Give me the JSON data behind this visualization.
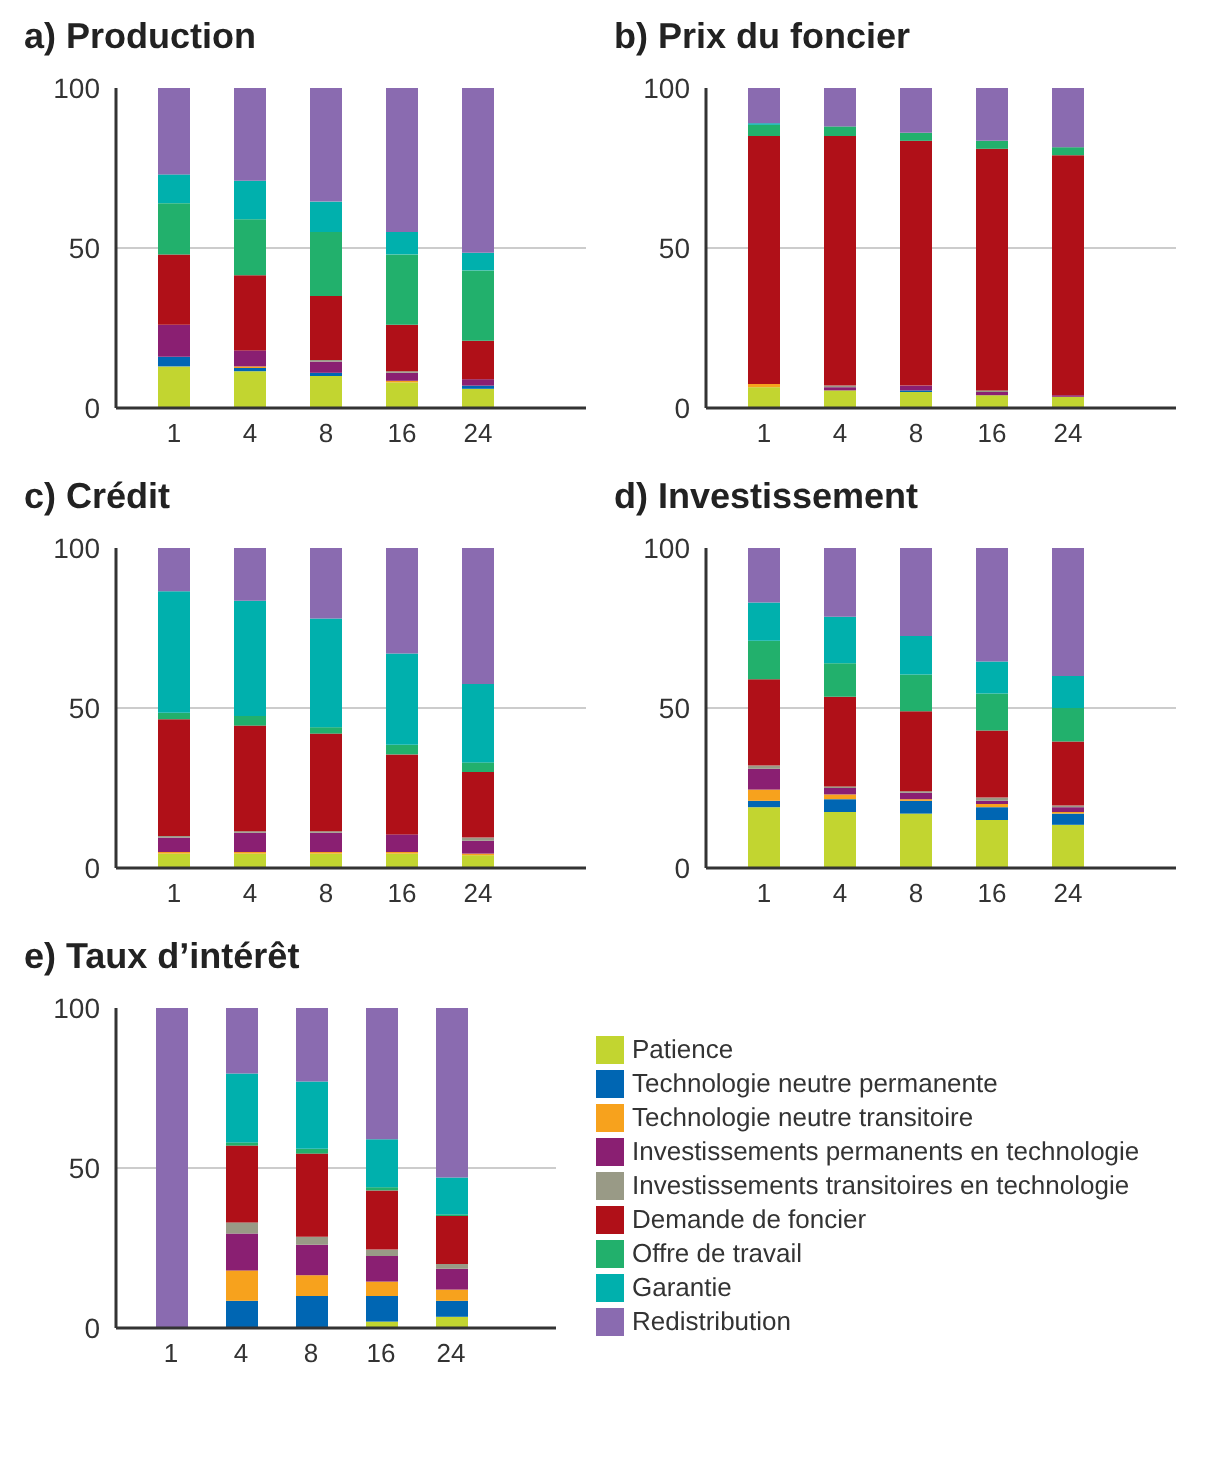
{
  "chart_data": [
    {
      "type": "bar",
      "title": "a)  Production",
      "categories": [
        "1",
        "4",
        "8",
        "16",
        "24"
      ],
      "stacked": true,
      "ylim": [
        0,
        100
      ],
      "yticks": [
        0,
        50,
        100
      ],
      "grid": "y",
      "legend": false,
      "series": [
        {
          "color": "#c2d530",
          "values": [
            13,
            11.5,
            10,
            8,
            6
          ]
        },
        {
          "color": "#0066b3",
          "values": [
            3,
            1,
            1,
            0,
            1
          ]
        },
        {
          "color": "#f7a21d",
          "values": [
            0,
            0.5,
            0,
            0.5,
            0
          ]
        },
        {
          "color": "#8a1f72",
          "values": [
            10,
            5,
            3.5,
            2.5,
            2
          ]
        },
        {
          "color": "#999a86",
          "values": [
            0,
            0,
            0.5,
            0.5,
            0
          ]
        },
        {
          "color": "#b01018",
          "values": [
            22,
            23.5,
            20,
            14.5,
            12
          ]
        },
        {
          "color": "#22b06c",
          "values": [
            16,
            17.5,
            20,
            22,
            22
          ]
        },
        {
          "color": "#00b0ad",
          "values": [
            9,
            12,
            9.5,
            7,
            5.5
          ]
        },
        {
          "color": "#8a6bb0",
          "values": [
            27,
            29,
            35.5,
            45,
            51.5
          ]
        }
      ]
    },
    {
      "type": "bar",
      "title": "b)  Prix du foncier",
      "categories": [
        "1",
        "4",
        "8",
        "16",
        "24"
      ],
      "stacked": true,
      "ylim": [
        0,
        100
      ],
      "yticks": [
        0,
        50,
        100
      ],
      "grid": "y",
      "legend": false,
      "series": [
        {
          "color": "#c2d530",
          "values": [
            6.5,
            5.5,
            5,
            4,
            3.5
          ]
        },
        {
          "color": "#0066b3",
          "values": [
            0,
            0,
            0.5,
            0,
            0
          ]
        },
        {
          "color": "#f7a21d",
          "values": [
            1,
            0,
            0,
            0,
            0
          ]
        },
        {
          "color": "#8a1f72",
          "values": [
            0,
            1,
            1.5,
            1,
            0.5
          ]
        },
        {
          "color": "#999a86",
          "values": [
            0,
            0.5,
            0,
            0.5,
            0
          ]
        },
        {
          "color": "#b01018",
          "values": [
            77.5,
            78,
            76.5,
            75.5,
            75
          ]
        },
        {
          "color": "#22b06c",
          "values": [
            3.5,
            3,
            2.5,
            2.5,
            2.5
          ]
        },
        {
          "color": "#00b0ad",
          "values": [
            0.5,
            0,
            0,
            0,
            0
          ]
        },
        {
          "color": "#8a6bb0",
          "values": [
            11,
            12,
            14,
            16.5,
            18.5
          ]
        }
      ]
    },
    {
      "type": "bar",
      "title": "c)  Crédit",
      "categories": [
        "1",
        "4",
        "8",
        "16",
        "24"
      ],
      "stacked": true,
      "ylim": [
        0,
        100
      ],
      "yticks": [
        0,
        50,
        100
      ],
      "grid": "y",
      "legend": false,
      "series": [
        {
          "color": "#c2d530",
          "values": [
            4.5,
            4.5,
            4.5,
            4.5,
            4
          ]
        },
        {
          "color": "#0066b3",
          "values": [
            0,
            0,
            0,
            0,
            0
          ]
        },
        {
          "color": "#f7a21d",
          "values": [
            0.5,
            0.5,
            0.5,
            0.5,
            0.5
          ]
        },
        {
          "color": "#8a1f72",
          "values": [
            4.5,
            6,
            6,
            5.5,
            4
          ]
        },
        {
          "color": "#999a86",
          "values": [
            0.5,
            0.5,
            0.5,
            0,
            1
          ]
        },
        {
          "color": "#b01018",
          "values": [
            36.5,
            33,
            30.5,
            25,
            20.5
          ]
        },
        {
          "color": "#22b06c",
          "values": [
            2,
            3,
            2,
            3,
            3
          ]
        },
        {
          "color": "#00b0ad",
          "values": [
            38,
            36,
            34,
            28.5,
            24.5
          ]
        },
        {
          "color": "#8a6bb0",
          "values": [
            13.5,
            16.5,
            22,
            33,
            42.5
          ]
        }
      ]
    },
    {
      "type": "bar",
      "title": "d)  Investissement",
      "categories": [
        "1",
        "4",
        "8",
        "16",
        "24"
      ],
      "stacked": true,
      "ylim": [
        0,
        100
      ],
      "yticks": [
        0,
        50,
        100
      ],
      "grid": "y",
      "legend": false,
      "series": [
        {
          "color": "#c2d530",
          "values": [
            19,
            17.5,
            17,
            15,
            13.5
          ]
        },
        {
          "color": "#0066b3",
          "values": [
            2,
            4,
            4,
            4,
            3.5
          ]
        },
        {
          "color": "#f7a21d",
          "values": [
            3.5,
            1.5,
            0.5,
            1,
            0.5
          ]
        },
        {
          "color": "#8a1f72",
          "values": [
            6.5,
            2,
            2,
            1,
            1.5
          ]
        },
        {
          "color": "#999a86",
          "values": [
            1,
            0.5,
            0.5,
            1,
            0.5
          ]
        },
        {
          "color": "#b01018",
          "values": [
            27,
            28,
            25,
            21,
            20
          ]
        },
        {
          "color": "#22b06c",
          "values": [
            12,
            10.5,
            11.5,
            11.5,
            10.5
          ]
        },
        {
          "color": "#00b0ad",
          "values": [
            12,
            14.5,
            12,
            10,
            10
          ]
        },
        {
          "color": "#8a6bb0",
          "values": [
            17,
            21.5,
            27.5,
            35.5,
            40
          ]
        }
      ]
    },
    {
      "type": "bar",
      "title": "e)  Taux d’intérêt",
      "categories": [
        "1",
        "4",
        "8",
        "16",
        "24"
      ],
      "stacked": true,
      "ylim": [
        0,
        100
      ],
      "yticks": [
        0,
        50,
        100
      ],
      "grid": "y",
      "legend": "right",
      "series": [
        {
          "name": "Patience",
          "color": "#c2d530",
          "values": [
            0,
            0,
            0,
            2,
            3.5
          ]
        },
        {
          "name": "Technologie neutre permanente",
          "color": "#0066b3",
          "values": [
            0,
            8.5,
            10,
            8,
            5
          ]
        },
        {
          "name": "Technologie neutre transitoire",
          "color": "#f7a21d",
          "values": [
            0,
            9.5,
            6.5,
            4.5,
            3.5
          ]
        },
        {
          "name": "Investissements permanents en technologie",
          "color": "#8a1f72",
          "values": [
            0,
            11.5,
            9.5,
            8,
            6.5
          ]
        },
        {
          "name": "Investissements transitoires en technologie",
          "color": "#999a86",
          "values": [
            0,
            3.5,
            2.5,
            2,
            1.5
          ]
        },
        {
          "name": "Demande de foncier",
          "color": "#b01018",
          "values": [
            0,
            24,
            26,
            18.5,
            15
          ]
        },
        {
          "name": "Offre de travail",
          "color": "#22b06c",
          "values": [
            0,
            1,
            1.5,
            1,
            0.5
          ]
        },
        {
          "name": "Garantie",
          "color": "#00b0ad",
          "values": [
            0,
            21.5,
            21,
            15,
            11.5
          ]
        },
        {
          "name": "Redistribution",
          "color": "#8a6bb0",
          "values": [
            100,
            20.5,
            23,
            41,
            53
          ]
        }
      ]
    }
  ]
}
